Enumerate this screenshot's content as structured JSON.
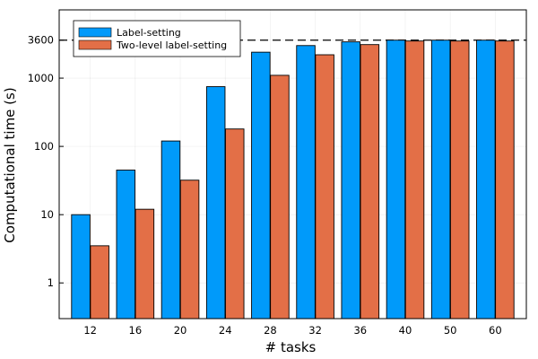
{
  "chart_data": {
    "type": "bar",
    "title": "",
    "xlabel": "# tasks",
    "ylabel": "Computational time (s)",
    "y_scale": "log10",
    "ylim": [
      0.3,
      10000
    ],
    "y_ticks": [
      1,
      10,
      100,
      1000,
      3600
    ],
    "y_tick_labels": [
      "1",
      "10",
      "100",
      "1000",
      "3600"
    ],
    "categories": [
      "12",
      "16",
      "20",
      "24",
      "28",
      "32",
      "36",
      "40",
      "50",
      "60"
    ],
    "series": [
      {
        "name": "Label-setting",
        "color": "#009AFA",
        "values": [
          10,
          45,
          120,
          750,
          2400,
          3000,
          3400,
          3600,
          3600,
          3600
        ]
      },
      {
        "name": "Two-level label-setting",
        "color": "#E36F47",
        "values": [
          3.5,
          12,
          32,
          180,
          1100,
          2200,
          3100,
          3500,
          3500,
          3500
        ]
      }
    ],
    "reference_line": {
      "value": 3600,
      "style": "dashed",
      "color": "#000000"
    },
    "legend_position": "top-left",
    "grid": true
  }
}
